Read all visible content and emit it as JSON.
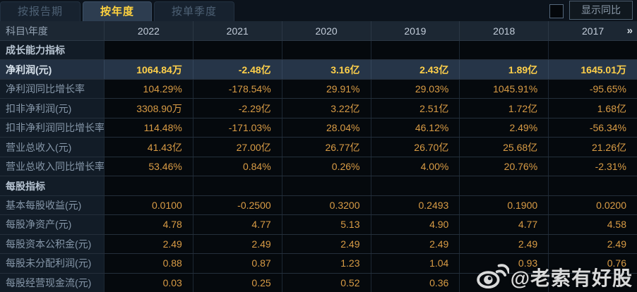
{
  "tabs": {
    "report_period": "按报告期",
    "annual": "按年度",
    "quarterly": "按单季度",
    "active": "按年度"
  },
  "toolbar": {
    "show_yoy_label": "显示同比",
    "checkbox_checked": false
  },
  "table": {
    "corner_label": "科目\\年度",
    "years": [
      "2022",
      "2021",
      "2020",
      "2019",
      "2018",
      "2017"
    ],
    "more_icon": "»",
    "rows": [
      {
        "type": "section",
        "label": "成长能力指标",
        "values": [
          "",
          "",
          "",
          "",
          "",
          ""
        ]
      },
      {
        "type": "highlight",
        "label": "净利润(元)",
        "values": [
          "1064.84万",
          "-2.48亿",
          "3.16亿",
          "2.43亿",
          "1.89亿",
          "1645.01万"
        ]
      },
      {
        "type": "data",
        "label": "净利润同比增长率",
        "values": [
          "104.29%",
          "-178.54%",
          "29.91%",
          "29.03%",
          "1045.91%",
          "-95.65%"
        ]
      },
      {
        "type": "data",
        "label": "扣非净利润(元)",
        "values": [
          "3308.90万",
          "-2.29亿",
          "3.22亿",
          "2.51亿",
          "1.72亿",
          "1.68亿"
        ]
      },
      {
        "type": "data",
        "label": "扣非净利润同比增长率",
        "values": [
          "114.48%",
          "-171.03%",
          "28.04%",
          "46.12%",
          "2.49%",
          "-56.34%"
        ]
      },
      {
        "type": "data",
        "label": "营业总收入(元)",
        "values": [
          "41.43亿",
          "27.00亿",
          "26.77亿",
          "26.70亿",
          "25.68亿",
          "21.26亿"
        ]
      },
      {
        "type": "data",
        "label": "营业总收入同比增长率",
        "values": [
          "53.46%",
          "0.84%",
          "0.26%",
          "4.00%",
          "20.76%",
          "-2.31%"
        ]
      },
      {
        "type": "section",
        "label": "每股指标",
        "values": [
          "",
          "",
          "",
          "",
          "",
          ""
        ]
      },
      {
        "type": "data",
        "label": "基本每股收益(元)",
        "values": [
          "0.0100",
          "-0.2500",
          "0.3200",
          "0.2493",
          "0.1900",
          "0.0200"
        ]
      },
      {
        "type": "data",
        "label": "每股净资产(元)",
        "values": [
          "4.78",
          "4.77",
          "5.13",
          "4.90",
          "4.77",
          "4.58"
        ]
      },
      {
        "type": "data",
        "label": "每股资本公积金(元)",
        "values": [
          "2.49",
          "2.49",
          "2.49",
          "2.49",
          "2.49",
          "2.49"
        ]
      },
      {
        "type": "data",
        "label": "每股未分配利润(元)",
        "values": [
          "0.88",
          "0.87",
          "1.23",
          "1.04",
          "0.93",
          "0.76"
        ]
      },
      {
        "type": "data",
        "label": "每股经营现金流(元)",
        "values": [
          "0.03",
          "0.25",
          "0.52",
          "0.36",
          "",
          ""
        ]
      }
    ]
  },
  "watermark": {
    "text": "@老索有好股"
  },
  "colors": {
    "accent_gold": "#ffd04a",
    "value_orange": "#d99c45",
    "highlight_row_bg": "#263548",
    "active_tab_text": "#ffd23f"
  }
}
